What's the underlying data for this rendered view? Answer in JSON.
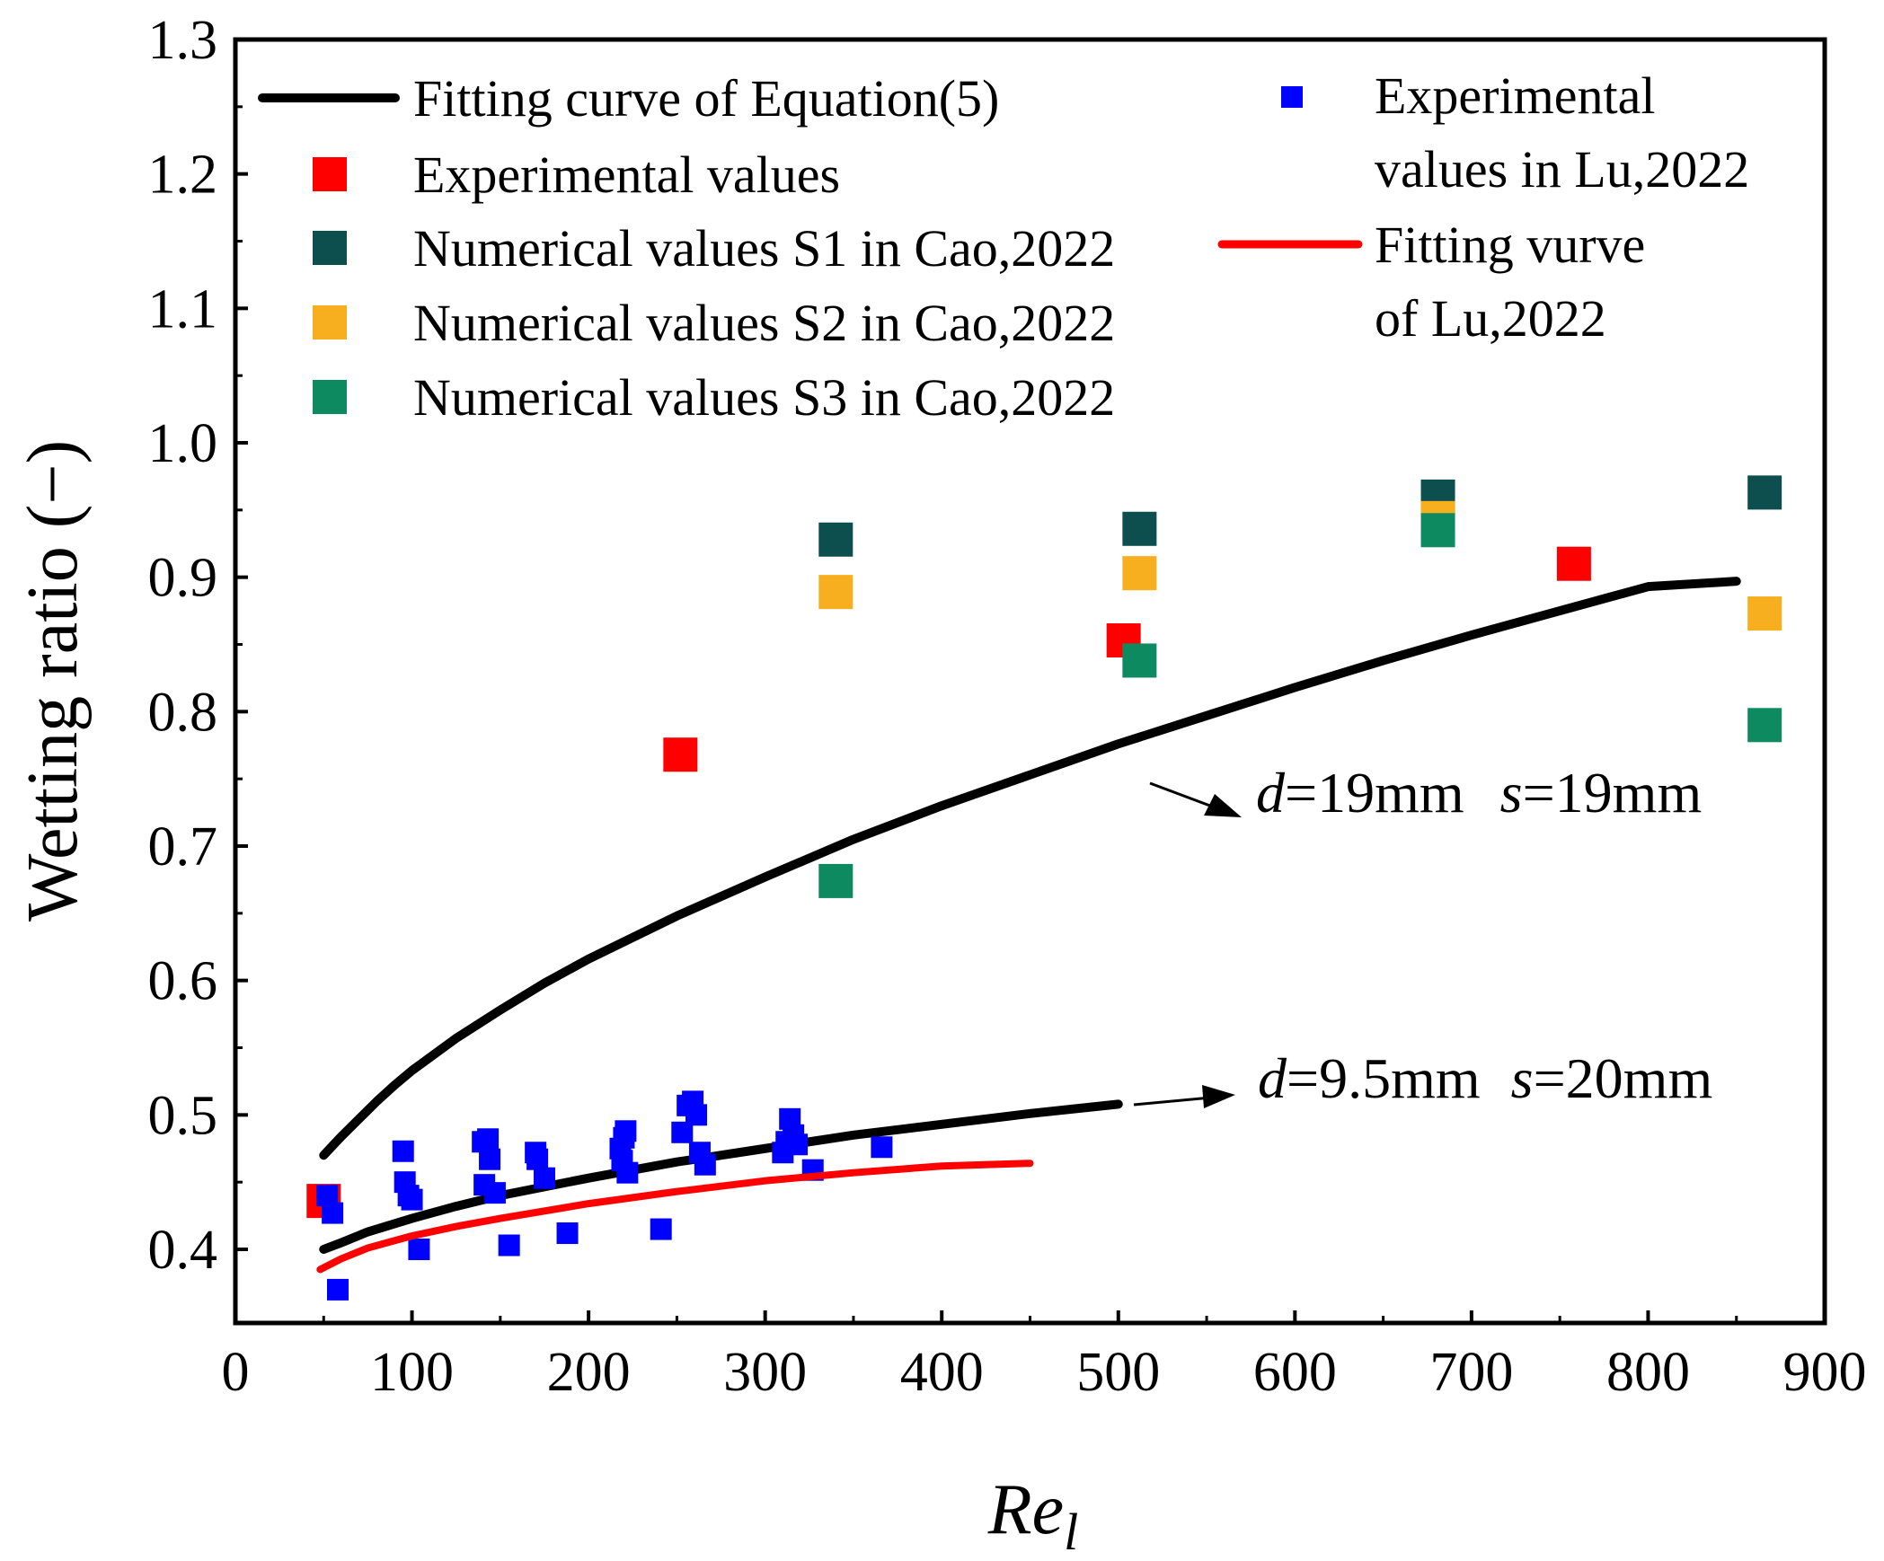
{
  "chart_data": {
    "type": "scatter",
    "xlabel_main": "Re",
    "xlabel_sub": "l",
    "ylabel": "Wetting ratio (−)",
    "xlim": [
      0,
      900
    ],
    "ylim": [
      0.33,
      1.3
    ],
    "xticks": [
      0,
      100,
      200,
      300,
      400,
      500,
      600,
      700,
      800,
      900
    ],
    "xtick_labels": [
      "0",
      "100",
      "200",
      "300",
      "400",
      "500",
      "600",
      "700",
      "800",
      "900"
    ],
    "yticks": [
      0.4,
      0.5,
      0.6,
      0.7,
      0.8,
      0.9,
      1.0,
      1.1,
      1.2,
      1.3
    ],
    "ytick_labels": [
      "0.4",
      "0.5",
      "0.6",
      "0.7",
      "0.8",
      "0.9",
      "1.0",
      "1.1",
      "1.2",
      "1.3"
    ],
    "series": [
      {
        "name": "Fitting curve of Equation(5)",
        "kind": "line",
        "color": "#000000",
        "points": [
          [
            50,
            0.47
          ],
          [
            60,
            0.484
          ],
          [
            70,
            0.497
          ],
          [
            80,
            0.51
          ],
          [
            90,
            0.522
          ],
          [
            100,
            0.533
          ],
          [
            125,
            0.557
          ],
          [
            150,
            0.578
          ],
          [
            175,
            0.598
          ],
          [
            200,
            0.616
          ],
          [
            250,
            0.648
          ],
          [
            300,
            0.677
          ],
          [
            350,
            0.705
          ],
          [
            400,
            0.73
          ],
          [
            450,
            0.753
          ],
          [
            500,
            0.776
          ],
          [
            550,
            0.797
          ],
          [
            600,
            0.818
          ],
          [
            650,
            0.838
          ],
          [
            700,
            0.857
          ],
          [
            750,
            0.875
          ],
          [
            800,
            0.893
          ],
          [
            850,
            0.897
          ]
        ]
      },
      {
        "name": "Fitting curve of Equation(5) d=9.5mm",
        "kind": "line",
        "color": "#000000",
        "points": [
          [
            50,
            0.4
          ],
          [
            60,
            0.405
          ],
          [
            75,
            0.413
          ],
          [
            100,
            0.423
          ],
          [
            125,
            0.432
          ],
          [
            150,
            0.44
          ],
          [
            200,
            0.453
          ],
          [
            250,
            0.465
          ],
          [
            300,
            0.475
          ],
          [
            350,
            0.485
          ],
          [
            400,
            0.493
          ],
          [
            450,
            0.501
          ],
          [
            500,
            0.508
          ]
        ]
      },
      {
        "name": "Experimental values",
        "kind": "scatter",
        "color": "#ff0000",
        "points": [
          [
            50,
            0.436
          ],
          [
            252,
            0.768
          ],
          [
            503,
            0.853
          ],
          [
            758,
            0.91
          ]
        ]
      },
      {
        "name": "Numerical values S1 in Cao,2022",
        "kind": "scatter",
        "color": "#0d4f4f",
        "points": [
          [
            340,
            0.928
          ],
          [
            512,
            0.936
          ],
          [
            681,
            0.96
          ],
          [
            866,
            0.963
          ]
        ]
      },
      {
        "name": "Numerical values S2 in Cao,2022",
        "kind": "scatter",
        "color": "#f7ae1f",
        "points": [
          [
            340,
            0.889
          ],
          [
            512,
            0.903
          ],
          [
            681,
            0.944
          ],
          [
            866,
            0.873
          ]
        ]
      },
      {
        "name": "Numerical values S3 in Cao,2022",
        "kind": "scatter",
        "color": "#0e8a60",
        "points": [
          [
            340,
            0.674
          ],
          [
            512,
            0.838
          ],
          [
            681,
            0.935
          ],
          [
            866,
            0.79
          ]
        ]
      },
      {
        "name": "Experimental values in Lu,2022",
        "kind": "scatter",
        "color": "#0000ff",
        "points": [
          [
            52,
            0.44
          ],
          [
            55,
            0.427
          ],
          [
            58,
            0.37
          ],
          [
            95,
            0.473
          ],
          [
            96,
            0.45
          ],
          [
            98,
            0.44
          ],
          [
            100,
            0.437
          ],
          [
            104,
            0.4
          ],
          [
            140,
            0.48
          ],
          [
            141,
            0.448
          ],
          [
            143,
            0.482
          ],
          [
            144,
            0.467
          ],
          [
            147,
            0.442
          ],
          [
            155,
            0.403
          ],
          [
            170,
            0.472
          ],
          [
            171,
            0.467
          ],
          [
            175,
            0.453
          ],
          [
            188,
            0.412
          ],
          [
            218,
            0.475
          ],
          [
            219,
            0.466
          ],
          [
            220,
            0.483
          ],
          [
            221,
            0.488
          ],
          [
            222,
            0.457
          ],
          [
            241,
            0.415
          ],
          [
            253,
            0.487
          ],
          [
            256,
            0.507
          ],
          [
            259,
            0.51
          ],
          [
            261,
            0.5
          ],
          [
            263,
            0.472
          ],
          [
            266,
            0.463
          ],
          [
            310,
            0.472
          ],
          [
            312,
            0.48
          ],
          [
            314,
            0.497
          ],
          [
            316,
            0.485
          ],
          [
            318,
            0.478
          ],
          [
            327,
            0.459
          ],
          [
            366,
            0.476
          ]
        ]
      },
      {
        "name": "Fitting vurve of Lu,2022",
        "kind": "line",
        "color": "#ff0000",
        "points": [
          [
            48,
            0.385
          ],
          [
            60,
            0.393
          ],
          [
            75,
            0.401
          ],
          [
            100,
            0.41
          ],
          [
            125,
            0.417
          ],
          [
            150,
            0.423
          ],
          [
            200,
            0.434
          ],
          [
            250,
            0.443
          ],
          [
            300,
            0.451
          ],
          [
            350,
            0.457
          ],
          [
            400,
            0.462
          ],
          [
            450,
            0.464
          ]
        ]
      }
    ],
    "legend": {
      "left_entries": [
        {
          "series": 0,
          "label": "Fitting curve of Equation(5)"
        },
        {
          "series": 2,
          "label": "Experimental values"
        },
        {
          "series": 3,
          "label": "Numerical values S1 in Cao,2022"
        },
        {
          "series": 4,
          "label": "Numerical values S2 in Cao,2022"
        },
        {
          "series": 5,
          "label": "Numerical values S3 in Cao,2022"
        }
      ],
      "right_entries": [
        {
          "series": 6,
          "lines": [
            "Experimental",
            "values in Lu,2022"
          ]
        },
        {
          "series": 7,
          "lines": [
            "Fitting vurve",
            "of Lu,2022"
          ]
        }
      ]
    },
    "annotations": [
      {
        "id": "annot-19mm",
        "d_label": "d",
        "d_value": "=19mm",
        "s_label": "s",
        "s_value": "=19mm"
      },
      {
        "id": "annot-9.5mm",
        "d_label": "d",
        "d_value": "=9.5mm",
        "s_label": "s",
        "s_value": "=20mm"
      }
    ]
  }
}
